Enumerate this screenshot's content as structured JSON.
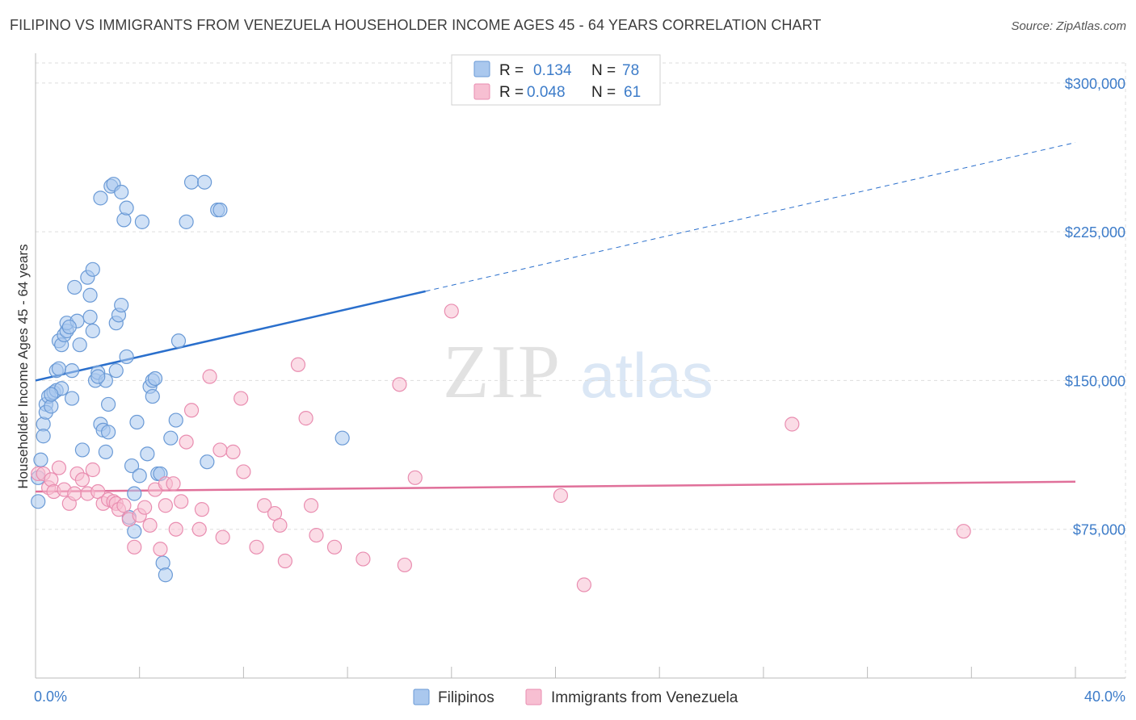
{
  "title": "FILIPINO VS IMMIGRANTS FROM VENEZUELA HOUSEHOLDER INCOME AGES 45 - 64 YEARS CORRELATION CHART",
  "source": "Source: ZipAtlas.com",
  "watermark": {
    "zip": "ZIP",
    "atlas": "atlas"
  },
  "colors": {
    "filipino_fill": "#aac8ee",
    "filipino_stroke": "#6a9ad6",
    "filipino_line": "#2a6fcc",
    "venezuela_fill": "#f7bfd2",
    "venezuela_stroke": "#e98db0",
    "venezuela_line": "#e0709a",
    "axis_text": "#3d7cc9",
    "grid": "#dddddd"
  },
  "legend": {
    "rows": [
      {
        "r_label": "R = ",
        "r_value": "0.134",
        "n_label": "N = ",
        "n_value": "78"
      },
      {
        "r_label": "R = ",
        "r_value": "0.048",
        "n_label": "N = ",
        "n_value": "61"
      }
    ]
  },
  "chart_data": {
    "type": "scatter",
    "title": "FILIPINO VS IMMIGRANTS FROM VENEZUELA HOUSEHOLDER INCOME AGES 45 - 64 YEARS CORRELATION CHART",
    "xlabel": "",
    "ylabel": "Householder Income Ages 45 - 64 years",
    "xlim": [
      0,
      40
    ],
    "ylim": [
      0,
      315000
    ],
    "x_tick_labels": [
      "0.0%",
      "40.0%"
    ],
    "y_ticks": [
      {
        "value": 75000,
        "label": "$75,000"
      },
      {
        "value": 150000,
        "label": "$150,000"
      },
      {
        "value": 225000,
        "label": "$225,000"
      },
      {
        "value": 300000,
        "label": "$300,000"
      }
    ],
    "legend_position": "top-center",
    "series": [
      {
        "name": "Filipinos",
        "r": 0.134,
        "n": 78,
        "trend": {
          "x0": 0,
          "y0": 150000,
          "x_solid_end": 15,
          "x1": 40,
          "y1": 270000
        },
        "points": [
          [
            0.1,
            89000
          ],
          [
            0.1,
            101000
          ],
          [
            0.2,
            110000
          ],
          [
            0.3,
            128000
          ],
          [
            0.3,
            122000
          ],
          [
            0.4,
            138000
          ],
          [
            0.4,
            134000
          ],
          [
            0.5,
            142000
          ],
          [
            0.6,
            137000
          ],
          [
            0.7,
            144000
          ],
          [
            0.8,
            145000
          ],
          [
            0.8,
            155000
          ],
          [
            0.9,
            156000
          ],
          [
            0.9,
            170000
          ],
          [
            1.0,
            168000
          ],
          [
            1.0,
            146000
          ],
          [
            1.1,
            173000
          ],
          [
            1.2,
            175000
          ],
          [
            1.2,
            179000
          ],
          [
            1.4,
            155000
          ],
          [
            1.4,
            141000
          ],
          [
            1.5,
            197000
          ],
          [
            1.6,
            180000
          ],
          [
            1.7,
            168000
          ],
          [
            1.8,
            115000
          ],
          [
            2.0,
            202000
          ],
          [
            2.1,
            182000
          ],
          [
            2.1,
            193000
          ],
          [
            2.2,
            206000
          ],
          [
            2.2,
            175000
          ],
          [
            2.3,
            150000
          ],
          [
            2.4,
            154000
          ],
          [
            2.5,
            242000
          ],
          [
            2.5,
            128000
          ],
          [
            2.6,
            125000
          ],
          [
            2.7,
            114000
          ],
          [
            2.7,
            150000
          ],
          [
            2.8,
            124000
          ],
          [
            2.8,
            138000
          ],
          [
            2.9,
            248000
          ],
          [
            3.0,
            249000
          ],
          [
            3.1,
            155000
          ],
          [
            3.1,
            179000
          ],
          [
            3.2,
            183000
          ],
          [
            3.3,
            188000
          ],
          [
            3.3,
            245000
          ],
          [
            3.4,
            231000
          ],
          [
            3.5,
            237000
          ],
          [
            3.5,
            162000
          ],
          [
            3.6,
            81000
          ],
          [
            3.7,
            107000
          ],
          [
            3.8,
            74000
          ],
          [
            3.8,
            93000
          ],
          [
            3.9,
            129000
          ],
          [
            4.0,
            102000
          ],
          [
            4.1,
            230000
          ],
          [
            4.3,
            113000
          ],
          [
            4.4,
            147000
          ],
          [
            4.5,
            142000
          ],
          [
            4.5,
            150000
          ],
          [
            4.6,
            151000
          ],
          [
            4.7,
            103000
          ],
          [
            4.8,
            103000
          ],
          [
            4.9,
            58000
          ],
          [
            5.0,
            52000
          ],
          [
            5.2,
            121000
          ],
          [
            5.4,
            130000
          ],
          [
            5.5,
            170000
          ],
          [
            5.8,
            230000
          ],
          [
            6.0,
            250000
          ],
          [
            6.5,
            250000
          ],
          [
            6.6,
            109000
          ],
          [
            7.0,
            236000
          ],
          [
            7.1,
            236000
          ],
          [
            11.8,
            121000
          ],
          [
            0.6,
            143000
          ],
          [
            1.3,
            177000
          ],
          [
            2.4,
            152000
          ]
        ]
      },
      {
        "name": "Immigrants from Venezuela",
        "r": 0.048,
        "n": 61,
        "trend": {
          "x0": 0,
          "y0": 94000,
          "x1": 40,
          "y1": 99000
        },
        "points": [
          [
            0.1,
            103000
          ],
          [
            0.3,
            103000
          ],
          [
            0.5,
            96000
          ],
          [
            0.6,
            100000
          ],
          [
            0.7,
            94000
          ],
          [
            0.9,
            106000
          ],
          [
            1.1,
            95000
          ],
          [
            1.3,
            88000
          ],
          [
            1.5,
            93000
          ],
          [
            1.6,
            103000
          ],
          [
            1.8,
            100000
          ],
          [
            2.0,
            93000
          ],
          [
            2.2,
            105000
          ],
          [
            2.4,
            94000
          ],
          [
            2.6,
            88000
          ],
          [
            2.8,
            90000
          ],
          [
            3.0,
            89000
          ],
          [
            3.1,
            88000
          ],
          [
            3.2,
            85000
          ],
          [
            3.4,
            87000
          ],
          [
            3.6,
            80000
          ],
          [
            3.8,
            66000
          ],
          [
            4.0,
            82000
          ],
          [
            4.2,
            86000
          ],
          [
            4.4,
            77000
          ],
          [
            4.6,
            95000
          ],
          [
            4.8,
            65000
          ],
          [
            5.0,
            87000
          ],
          [
            5.0,
            98000
          ],
          [
            5.3,
            98000
          ],
          [
            5.4,
            75000
          ],
          [
            5.6,
            89000
          ],
          [
            5.8,
            119000
          ],
          [
            6.0,
            135000
          ],
          [
            6.3,
            75000
          ],
          [
            6.4,
            85000
          ],
          [
            6.7,
            152000
          ],
          [
            7.1,
            115000
          ],
          [
            7.2,
            71000
          ],
          [
            7.6,
            114000
          ],
          [
            7.9,
            141000
          ],
          [
            8.0,
            104000
          ],
          [
            8.5,
            66000
          ],
          [
            8.8,
            87000
          ],
          [
            9.2,
            83000
          ],
          [
            9.4,
            77000
          ],
          [
            9.6,
            59000
          ],
          [
            10.1,
            158000
          ],
          [
            10.4,
            131000
          ],
          [
            10.6,
            87000
          ],
          [
            10.8,
            72000
          ],
          [
            11.5,
            66000
          ],
          [
            12.6,
            60000
          ],
          [
            14.0,
            148000
          ],
          [
            14.2,
            57000
          ],
          [
            14.6,
            101000
          ],
          [
            16.0,
            185000
          ],
          [
            20.2,
            92000
          ],
          [
            21.1,
            47000
          ],
          [
            29.1,
            128000
          ],
          [
            35.7,
            74000
          ]
        ]
      }
    ]
  },
  "bottom_legend": {
    "filipinos": "Filipinos",
    "venezuela": "Immigrants from Venezuela"
  }
}
